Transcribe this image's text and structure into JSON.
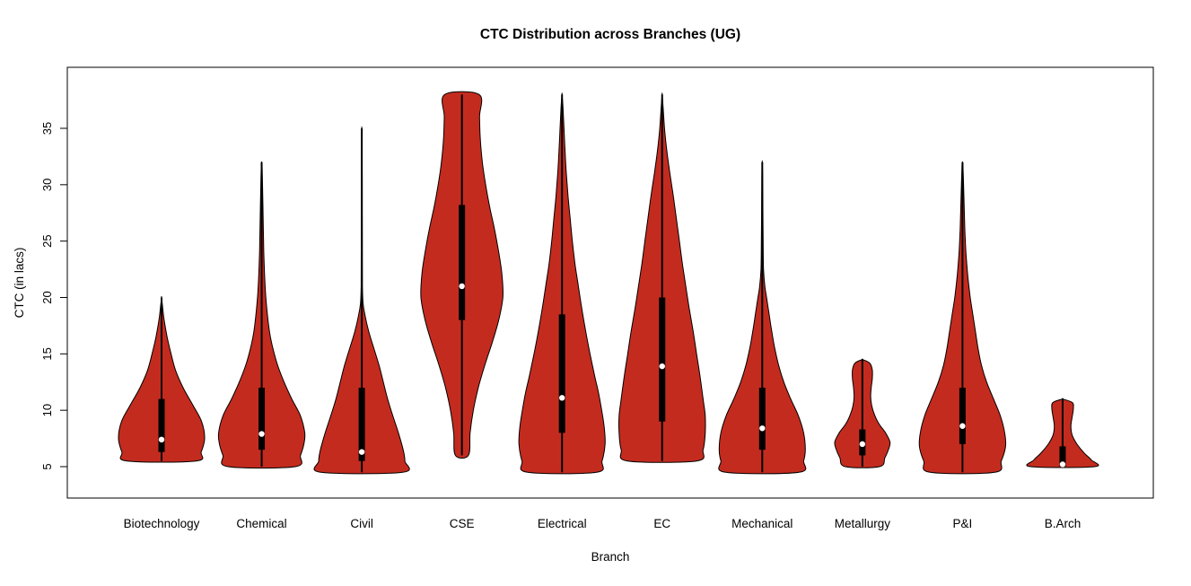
{
  "chart_data": {
    "type": "violin",
    "title": "CTC Distribution across Branches (UG)",
    "xlabel": "Branch",
    "ylabel": "CTC (in lacs)",
    "ylim": [
      4,
      40
    ],
    "yticks": [
      5,
      10,
      15,
      20,
      25,
      30,
      35
    ],
    "violin_color": "#C42B1F",
    "box_color": "#000000",
    "median_dot_color": "#FFFFFF",
    "background_color": "#FFFFFF",
    "categories": [
      "Biotechnology",
      "Chemical",
      "Civil",
      "CSE",
      "Electrical",
      "EC",
      "Mechanical",
      "Metallurgy",
      "P&I",
      "B.Arch"
    ],
    "series": [
      {
        "name": "Biotechnology",
        "min": 5.5,
        "max": 20,
        "q1": 6.3,
        "q3": 11,
        "median": 7.4,
        "wscale": 1.0,
        "profile": [
          [
            5.5,
            0.8
          ],
          [
            6.3,
            0.92
          ],
          [
            7.5,
            1.0
          ],
          [
            9,
            0.93
          ],
          [
            10.5,
            0.72
          ],
          [
            12,
            0.5
          ],
          [
            13.5,
            0.33
          ],
          [
            15,
            0.22
          ],
          [
            16.5,
            0.13
          ],
          [
            18,
            0.06
          ],
          [
            19.3,
            0.02
          ],
          [
            20,
            0.0
          ]
        ]
      },
      {
        "name": "Chemical",
        "min": 5,
        "max": 32,
        "q1": 6.5,
        "q3": 12,
        "median": 7.9,
        "wscale": 1.0,
        "profile": [
          [
            5,
            0.78
          ],
          [
            6,
            0.9
          ],
          [
            7,
            0.98
          ],
          [
            8,
            1.0
          ],
          [
            9.5,
            0.9
          ],
          [
            11,
            0.7
          ],
          [
            12.5,
            0.52
          ],
          [
            14,
            0.37
          ],
          [
            15.5,
            0.26
          ],
          [
            17,
            0.18
          ],
          [
            19,
            0.12
          ],
          [
            21,
            0.08
          ],
          [
            24,
            0.05
          ],
          [
            27,
            0.035
          ],
          [
            30,
            0.02
          ],
          [
            31.8,
            0.008
          ],
          [
            32,
            0.0
          ]
        ]
      },
      {
        "name": "Civil",
        "min": 4.5,
        "max": 35,
        "q1": 5.5,
        "q3": 12,
        "median": 6.3,
        "wscale": 1.0,
        "profile": [
          [
            4.5,
            0.95
          ],
          [
            5.5,
            1.0
          ],
          [
            6.5,
            0.96
          ],
          [
            8,
            0.85
          ],
          [
            9.5,
            0.72
          ],
          [
            11,
            0.6
          ],
          [
            12.5,
            0.5
          ],
          [
            14,
            0.4
          ],
          [
            15.5,
            0.28
          ],
          [
            17,
            0.16
          ],
          [
            18.5,
            0.07
          ],
          [
            19.5,
            0.03
          ],
          [
            21,
            0.015
          ],
          [
            25,
            0.012
          ],
          [
            30,
            0.01
          ],
          [
            34,
            0.006
          ],
          [
            35,
            0.0
          ]
        ]
      },
      {
        "name": "CSE",
        "min": 6,
        "max": 38,
        "q1": 18,
        "q3": 28.2,
        "median": 21,
        "wscale": 0.95,
        "profile": [
          [
            6,
            0.16
          ],
          [
            8,
            0.2
          ],
          [
            10,
            0.28
          ],
          [
            12,
            0.4
          ],
          [
            14,
            0.56
          ],
          [
            16,
            0.74
          ],
          [
            18,
            0.9
          ],
          [
            20,
            1.0
          ],
          [
            22,
            0.98
          ],
          [
            24,
            0.9
          ],
          [
            26,
            0.8
          ],
          [
            28,
            0.68
          ],
          [
            30,
            0.58
          ],
          [
            32,
            0.5
          ],
          [
            34,
            0.45
          ],
          [
            36,
            0.43
          ],
          [
            38,
            0.42
          ]
        ]
      },
      {
        "name": "Electrical",
        "min": 4.5,
        "max": 38,
        "q1": 8,
        "q3": 18.5,
        "median": 11.1,
        "wscale": 1.0,
        "profile": [
          [
            4.5,
            0.8
          ],
          [
            5.5,
            0.93
          ],
          [
            7,
            1.0
          ],
          [
            8.5,
            0.98
          ],
          [
            10,
            0.92
          ],
          [
            11.5,
            0.85
          ],
          [
            13,
            0.76
          ],
          [
            15,
            0.65
          ],
          [
            17,
            0.55
          ],
          [
            19,
            0.46
          ],
          [
            21,
            0.38
          ],
          [
            23,
            0.3
          ],
          [
            25,
            0.24
          ],
          [
            27,
            0.19
          ],
          [
            29,
            0.14
          ],
          [
            31,
            0.1
          ],
          [
            33,
            0.07
          ],
          [
            35,
            0.045
          ],
          [
            37,
            0.02
          ],
          [
            38,
            0.0
          ]
        ]
      },
      {
        "name": "EC",
        "min": 5.5,
        "max": 38,
        "q1": 9,
        "q3": 20,
        "median": 13.9,
        "wscale": 1.0,
        "profile": [
          [
            5.5,
            0.8
          ],
          [
            6.5,
            0.95
          ],
          [
            8,
            1.0
          ],
          [
            9.5,
            1.0
          ],
          [
            11,
            0.95
          ],
          [
            13,
            0.88
          ],
          [
            15,
            0.8
          ],
          [
            17,
            0.72
          ],
          [
            19,
            0.63
          ],
          [
            21,
            0.55
          ],
          [
            23,
            0.47
          ],
          [
            25,
            0.4
          ],
          [
            27,
            0.33
          ],
          [
            29,
            0.26
          ],
          [
            31,
            0.18
          ],
          [
            33,
            0.11
          ],
          [
            35,
            0.055
          ],
          [
            37,
            0.02
          ],
          [
            38,
            0.0
          ]
        ]
      },
      {
        "name": "Mechanical",
        "min": 4.5,
        "max": 32,
        "q1": 6.5,
        "q3": 12,
        "median": 8.4,
        "wscale": 1.0,
        "profile": [
          [
            4.5,
            0.85
          ],
          [
            5.5,
            0.96
          ],
          [
            6.5,
            1.0
          ],
          [
            8,
            0.96
          ],
          [
            9.5,
            0.84
          ],
          [
            11,
            0.66
          ],
          [
            12.5,
            0.5
          ],
          [
            14,
            0.38
          ],
          [
            15.5,
            0.29
          ],
          [
            17,
            0.22
          ],
          [
            18.5,
            0.16
          ],
          [
            20,
            0.1
          ],
          [
            21,
            0.06
          ],
          [
            22.5,
            0.03
          ],
          [
            25,
            0.02
          ],
          [
            28,
            0.015
          ],
          [
            31,
            0.008
          ],
          [
            32,
            0.0
          ]
        ]
      },
      {
        "name": "Metallurgy",
        "min": 5,
        "max": 14.5,
        "q1": 6,
        "q3": 8.3,
        "median": 7,
        "wscale": 0.64,
        "profile": [
          [
            5,
            0.62
          ],
          [
            5.8,
            0.82
          ],
          [
            6.6,
            0.96
          ],
          [
            7.2,
            1.0
          ],
          [
            8,
            0.84
          ],
          [
            8.8,
            0.6
          ],
          [
            9.6,
            0.44
          ],
          [
            10.4,
            0.34
          ],
          [
            11.2,
            0.3
          ],
          [
            12,
            0.32
          ],
          [
            12.8,
            0.36
          ],
          [
            13.6,
            0.36
          ],
          [
            14.2,
            0.26
          ],
          [
            14.5,
            0.0
          ]
        ]
      },
      {
        "name": "P&I",
        "min": 4.5,
        "max": 32,
        "q1": 7,
        "q3": 12,
        "median": 8.6,
        "wscale": 1.0,
        "profile": [
          [
            4.5,
            0.75
          ],
          [
            5.5,
            0.9
          ],
          [
            6.8,
            1.0
          ],
          [
            8,
            0.98
          ],
          [
            9.5,
            0.88
          ],
          [
            11,
            0.72
          ],
          [
            12.5,
            0.56
          ],
          [
            14,
            0.44
          ],
          [
            15.5,
            0.36
          ],
          [
            17,
            0.3
          ],
          [
            18.5,
            0.24
          ],
          [
            20,
            0.18
          ],
          [
            22,
            0.12
          ],
          [
            24,
            0.08
          ],
          [
            26,
            0.055
          ],
          [
            28,
            0.04
          ],
          [
            30,
            0.025
          ],
          [
            31.7,
            0.01
          ],
          [
            32,
            0.0
          ]
        ]
      },
      {
        "name": "B.Arch",
        "min": 5,
        "max": 11,
        "q1": 5,
        "q3": 6.8,
        "median": 5.2,
        "wscale": 0.74,
        "profile": [
          [
            5,
            1.0
          ],
          [
            5.6,
            0.9
          ],
          [
            6.2,
            0.68
          ],
          [
            7,
            0.45
          ],
          [
            7.8,
            0.3
          ],
          [
            8.6,
            0.26
          ],
          [
            9.4,
            0.3
          ],
          [
            10.2,
            0.34
          ],
          [
            10.7,
            0.3
          ],
          [
            11,
            0.0
          ]
        ]
      }
    ]
  }
}
